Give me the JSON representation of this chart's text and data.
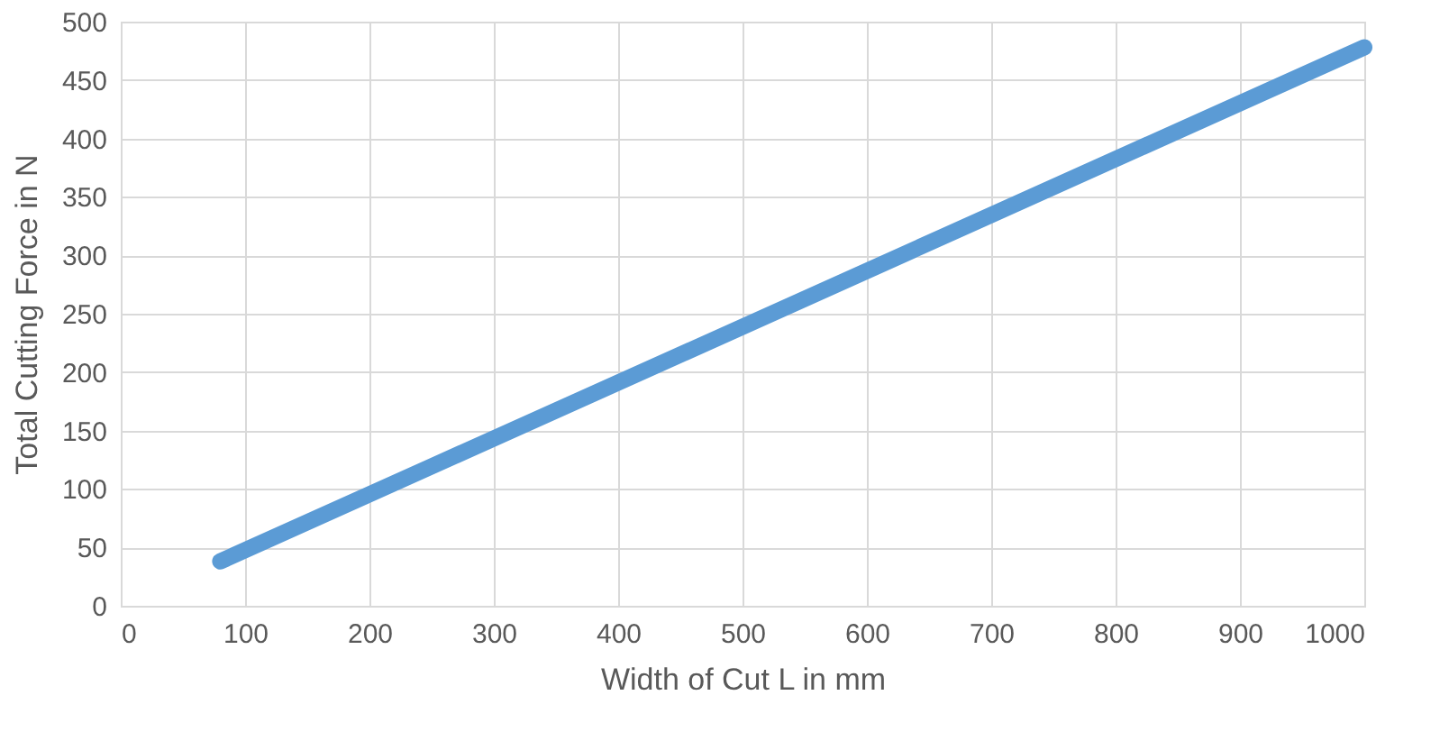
{
  "chart_data": {
    "type": "line",
    "xlabel": "Width of Cut L in mm",
    "ylabel": "Total Cutting Force in N",
    "x": [
      80,
      1000
    ],
    "series": [
      {
        "color": "#5b9bd5",
        "values": [
          38,
          478
        ]
      }
    ],
    "xlim": [
      0,
      1000
    ],
    "xticks": [
      0,
      100,
      200,
      300,
      400,
      500,
      600,
      700,
      800,
      900,
      1000
    ],
    "ylim": [
      0,
      500
    ],
    "yticks": [
      0,
      50,
      100,
      150,
      200,
      250,
      300,
      350,
      400,
      450,
      500
    ],
    "grid": true,
    "marker": "none",
    "line_style": "solid"
  }
}
